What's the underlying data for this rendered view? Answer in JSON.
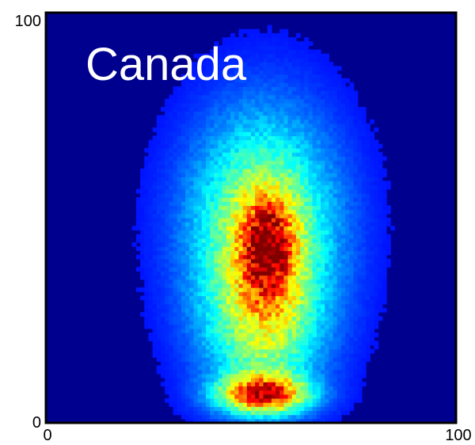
{
  "chart_data": {
    "type": "heatmap",
    "title": "",
    "xlabel": "",
    "ylabel": "",
    "xlim": [
      0,
      100
    ],
    "ylim": [
      0,
      100
    ],
    "x_ticks": [
      "0",
      "100"
    ],
    "y_ticks": [
      "0",
      "100"
    ],
    "grid": false,
    "legend": "none",
    "annotation": "Canada",
    "colormap": "jet",
    "background_color": "#00008f",
    "density_clusters": [
      {
        "x": 53,
        "y": 47,
        "sx": 12,
        "sy": 19,
        "weight": 0.55
      },
      {
        "x": 54,
        "y": 43,
        "sx": 4.5,
        "sy": 8,
        "weight": 0.5
      },
      {
        "x": 53,
        "y": 7,
        "sx": 7.5,
        "sy": 3.2,
        "weight": 0.75
      },
      {
        "x": 53,
        "y": 22,
        "sx": 9.5,
        "sy": 12,
        "weight": 0.32
      }
    ]
  }
}
